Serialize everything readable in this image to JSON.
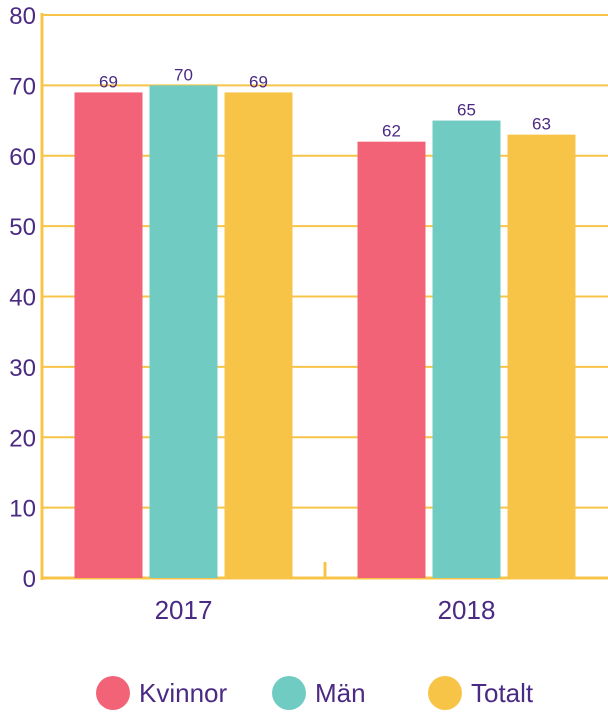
{
  "chart_data": {
    "type": "bar",
    "categories": [
      "2017",
      "2018"
    ],
    "series": [
      {
        "name": "Kvinnor",
        "color": "#f26377",
        "values": [
          69,
          62
        ]
      },
      {
        "name": "Män",
        "color": "#70ccc2",
        "values": [
          70,
          65
        ]
      },
      {
        "name": "Totalt",
        "color": "#f8c448",
        "values": [
          69,
          63
        ]
      }
    ],
    "data_labels": [
      [
        "69",
        "62"
      ],
      [
        "70",
        "65"
      ],
      [
        "69",
        "63"
      ]
    ],
    "y_ticks": [
      "0",
      "10",
      "20",
      "30",
      "40",
      "50",
      "60",
      "70",
      "80"
    ],
    "ylim": [
      0,
      80
    ],
    "grid": true,
    "legend_position": "bottom",
    "colors": {
      "axis": "#f8c448",
      "grid": "#f8c448",
      "text": "#4b2a83"
    }
  }
}
